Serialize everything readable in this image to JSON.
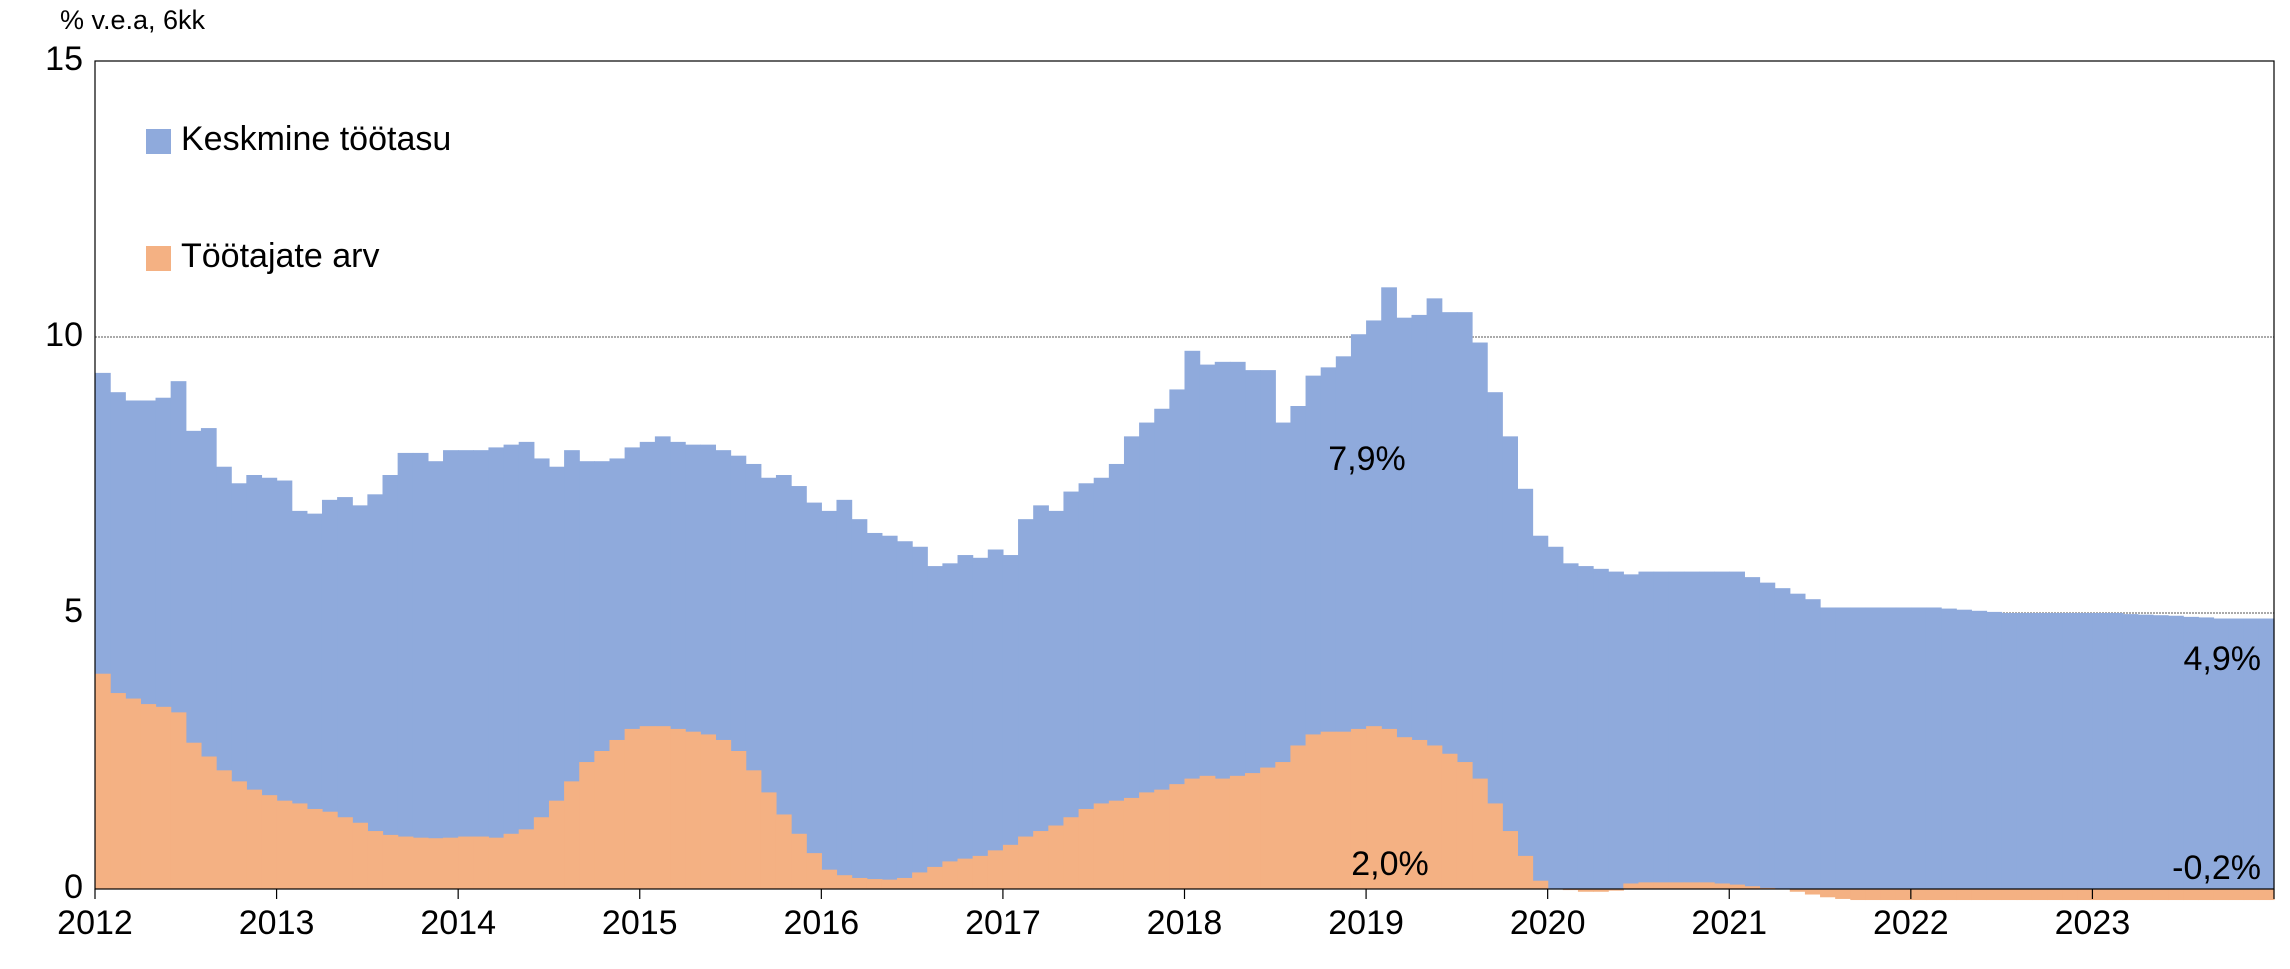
{
  "chart_data": {
    "type": "bar",
    "y_axis_label": "% v.e.a, 6kk",
    "categories": [
      "2012",
      null,
      null,
      null,
      null,
      null,
      null,
      null,
      null,
      null,
      null,
      null,
      "2013",
      null,
      null,
      null,
      null,
      null,
      null,
      null,
      null,
      null,
      null,
      null,
      "2014",
      null,
      null,
      null,
      null,
      null,
      null,
      null,
      null,
      null,
      null,
      null,
      "2015",
      null,
      null,
      null,
      null,
      null,
      null,
      null,
      null,
      null,
      null,
      null,
      "2016",
      null,
      null,
      null,
      null,
      null,
      null,
      null,
      null,
      null,
      null,
      null,
      "2017",
      null,
      null,
      null,
      null,
      null,
      null,
      null,
      null,
      null,
      null,
      null,
      "2018",
      null,
      null,
      null,
      null,
      null,
      null,
      null,
      null,
      null,
      null,
      null,
      "2019",
      null,
      null,
      null,
      null,
      null,
      null,
      null,
      null,
      null,
      null,
      null,
      "2020",
      null,
      null,
      null,
      null,
      null,
      null,
      null,
      null,
      null,
      null,
      null,
      "2021",
      null,
      null,
      null,
      null,
      null,
      null,
      null,
      null,
      null,
      null,
      null,
      "2022",
      null,
      null,
      null,
      null,
      null,
      null,
      null,
      null,
      null,
      null,
      null,
      "2023",
      null,
      null,
      null,
      null,
      null,
      null,
      null,
      null,
      null,
      null,
      null
    ],
    "series": [
      {
        "name": "Keskmine töötasu",
        "color": "#8faadc",
        "values": [
          9.35,
          9.0,
          8.85,
          8.85,
          8.9,
          9.2,
          8.3,
          8.35,
          7.65,
          7.35,
          7.5,
          7.45,
          7.4,
          6.85,
          6.8,
          7.05,
          7.1,
          6.95,
          7.15,
          7.5,
          7.9,
          7.9,
          7.75,
          7.95,
          7.95,
          7.95,
          8.0,
          8.05,
          8.1,
          7.8,
          7.65,
          7.95,
          7.75,
          7.75,
          7.8,
          8.0,
          8.1,
          8.2,
          8.1,
          8.05,
          8.05,
          7.95,
          7.85,
          7.7,
          7.45,
          7.5,
          7.3,
          7.0,
          6.85,
          7.05,
          6.7,
          6.45,
          6.4,
          6.3,
          6.2,
          5.85,
          5.9,
          6.05,
          6.0,
          6.15,
          6.05,
          6.7,
          6.95,
          6.85,
          7.2,
          7.35,
          7.45,
          7.7,
          8.2,
          8.45,
          8.7,
          9.05,
          9.75,
          9.5,
          9.55,
          9.55,
          9.4,
          9.4,
          8.45,
          8.75,
          9.3,
          9.45,
          9.65,
          10.05,
          10.3,
          10.9,
          10.35,
          10.4,
          10.7,
          10.45,
          10.45,
          9.9,
          9.0,
          8.2,
          7.25,
          6.4,
          6.2,
          5.9,
          5.85,
          5.8,
          5.75,
          5.7,
          5.75,
          5.75,
          5.75,
          5.75,
          5.75,
          5.75,
          5.75,
          5.65,
          5.55,
          5.45,
          5.35,
          5.25,
          5.1,
          5.1,
          5.1,
          5.1,
          5.1,
          5.1,
          5.1,
          5.1,
          5.08,
          5.06,
          5.04,
          5.02,
          5.0,
          5.0,
          5.0,
          5.0,
          5.0,
          5.0,
          5.0,
          5.0,
          4.98,
          4.97,
          4.96,
          4.95,
          4.93,
          4.92,
          4.9,
          4.9,
          4.9,
          4.9
        ]
      },
      {
        "name": "Töötajate arv",
        "color": "#f4b183",
        "values": [
          3.9,
          3.55,
          3.45,
          3.35,
          3.3,
          3.2,
          2.65,
          2.4,
          2.15,
          1.95,
          1.8,
          1.7,
          1.6,
          1.55,
          1.45,
          1.4,
          1.3,
          1.2,
          1.05,
          0.98,
          0.95,
          0.93,
          0.92,
          0.93,
          0.95,
          0.95,
          0.93,
          1.0,
          1.08,
          1.3,
          1.6,
          1.95,
          2.3,
          2.5,
          2.7,
          2.9,
          2.95,
          2.95,
          2.9,
          2.85,
          2.8,
          2.7,
          2.5,
          2.15,
          1.75,
          1.35,
          1.0,
          0.65,
          0.35,
          0.25,
          0.2,
          0.18,
          0.17,
          0.2,
          0.3,
          0.4,
          0.5,
          0.55,
          0.6,
          0.7,
          0.8,
          0.95,
          1.05,
          1.15,
          1.3,
          1.45,
          1.55,
          1.6,
          1.65,
          1.75,
          1.8,
          1.9,
          2.0,
          2.05,
          2.0,
          2.05,
          2.1,
          2.2,
          2.3,
          2.6,
          2.8,
          2.85,
          2.85,
          2.9,
          2.95,
          2.9,
          2.75,
          2.7,
          2.6,
          2.45,
          2.3,
          2.0,
          1.55,
          1.05,
          0.6,
          0.15,
          0.0,
          -0.02,
          -0.05,
          -0.05,
          -0.03,
          0.1,
          0.12,
          0.12,
          0.12,
          0.12,
          0.12,
          0.1,
          0.08,
          0.05,
          0.02,
          0.0,
          -0.05,
          -0.1,
          -0.15,
          -0.18,
          -0.2,
          -0.2,
          -0.2,
          -0.2,
          -0.2,
          -0.2,
          -0.2,
          -0.2,
          -0.2,
          -0.2,
          -0.2,
          -0.2,
          -0.2,
          -0.2,
          -0.2,
          -0.2,
          -0.2,
          -0.2,
          -0.2,
          -0.2,
          -0.2,
          -0.2,
          -0.2,
          -0.2,
          -0.2,
          -0.2,
          -0.2,
          -0.2
        ]
      }
    ],
    "annotations": [
      "7,9%",
      "2,0%",
      "4,9%",
      "-0,2%"
    ],
    "ylim": [
      0,
      15
    ],
    "yticks": [
      0,
      5,
      10,
      15
    ],
    "grid": true,
    "legend": "upper left"
  }
}
